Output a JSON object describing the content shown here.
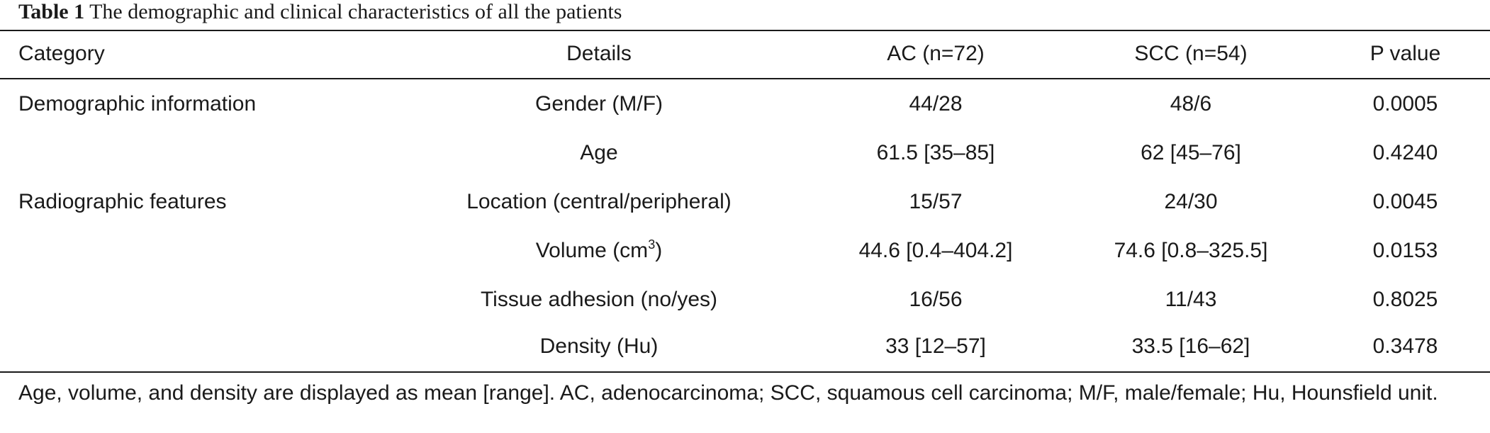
{
  "caption": {
    "label": "Table 1",
    "text": "The demographic and clinical characteristics of all the patients"
  },
  "table": {
    "headers": [
      "Category",
      "Details",
      "AC (n=72)",
      "SCC (n=54)",
      "P value"
    ],
    "rows": [
      {
        "category": "Demographic information",
        "details": "Gender (M/F)",
        "ac": "44/28",
        "scc": "48/6",
        "p": "0.0005"
      },
      {
        "category": "",
        "details": "Age",
        "ac": "61.5 [35–85]",
        "scc": "62 [45–76]",
        "p": "0.4240"
      },
      {
        "category": "Radiographic features",
        "details": "Location (central/peripheral)",
        "ac": "15/57",
        "scc": "24/30",
        "p": "0.0045"
      },
      {
        "category": "",
        "details_prefix": "Volume (cm",
        "details_sup": "3",
        "details_suffix": ")",
        "ac": "44.6 [0.4–404.2]",
        "scc": "74.6 [0.8–325.5]",
        "p": "0.0153"
      },
      {
        "category": "",
        "details": "Tissue adhesion (no/yes)",
        "ac": "16/56",
        "scc": "11/43",
        "p": "0.8025"
      },
      {
        "category": "",
        "details": "Density (Hu)",
        "ac": "33 [12–57]",
        "scc": "33.5 [16–62]",
        "p": "0.3478"
      }
    ]
  },
  "footnote": "Age, volume, and density are displayed as mean [range]. AC, adenocarcinoma; SCC, squamous cell carcinoma; M/F, male/female; Hu, Hounsfield unit."
}
